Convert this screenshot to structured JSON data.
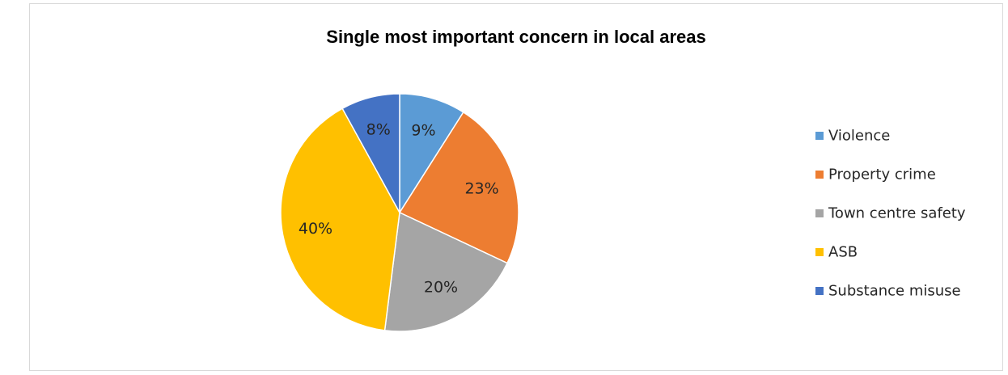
{
  "chart_data": {
    "type": "pie",
    "title": "Single most important concern in local areas",
    "categories": [
      "Violence",
      "Property crime",
      "Town centre safety",
      "ASB",
      "Substance misuse"
    ],
    "values": [
      9,
      23,
      20,
      40,
      8
    ],
    "labels": [
      "9%",
      "23%",
      "20%",
      "40%",
      "8%"
    ],
    "colors": [
      "#5b9bd5",
      "#ed7d31",
      "#a5a5a5",
      "#ffc000",
      "#4472c4"
    ],
    "start_angle_deg": 0,
    "direction": "clockwise",
    "legend_position": "right"
  }
}
